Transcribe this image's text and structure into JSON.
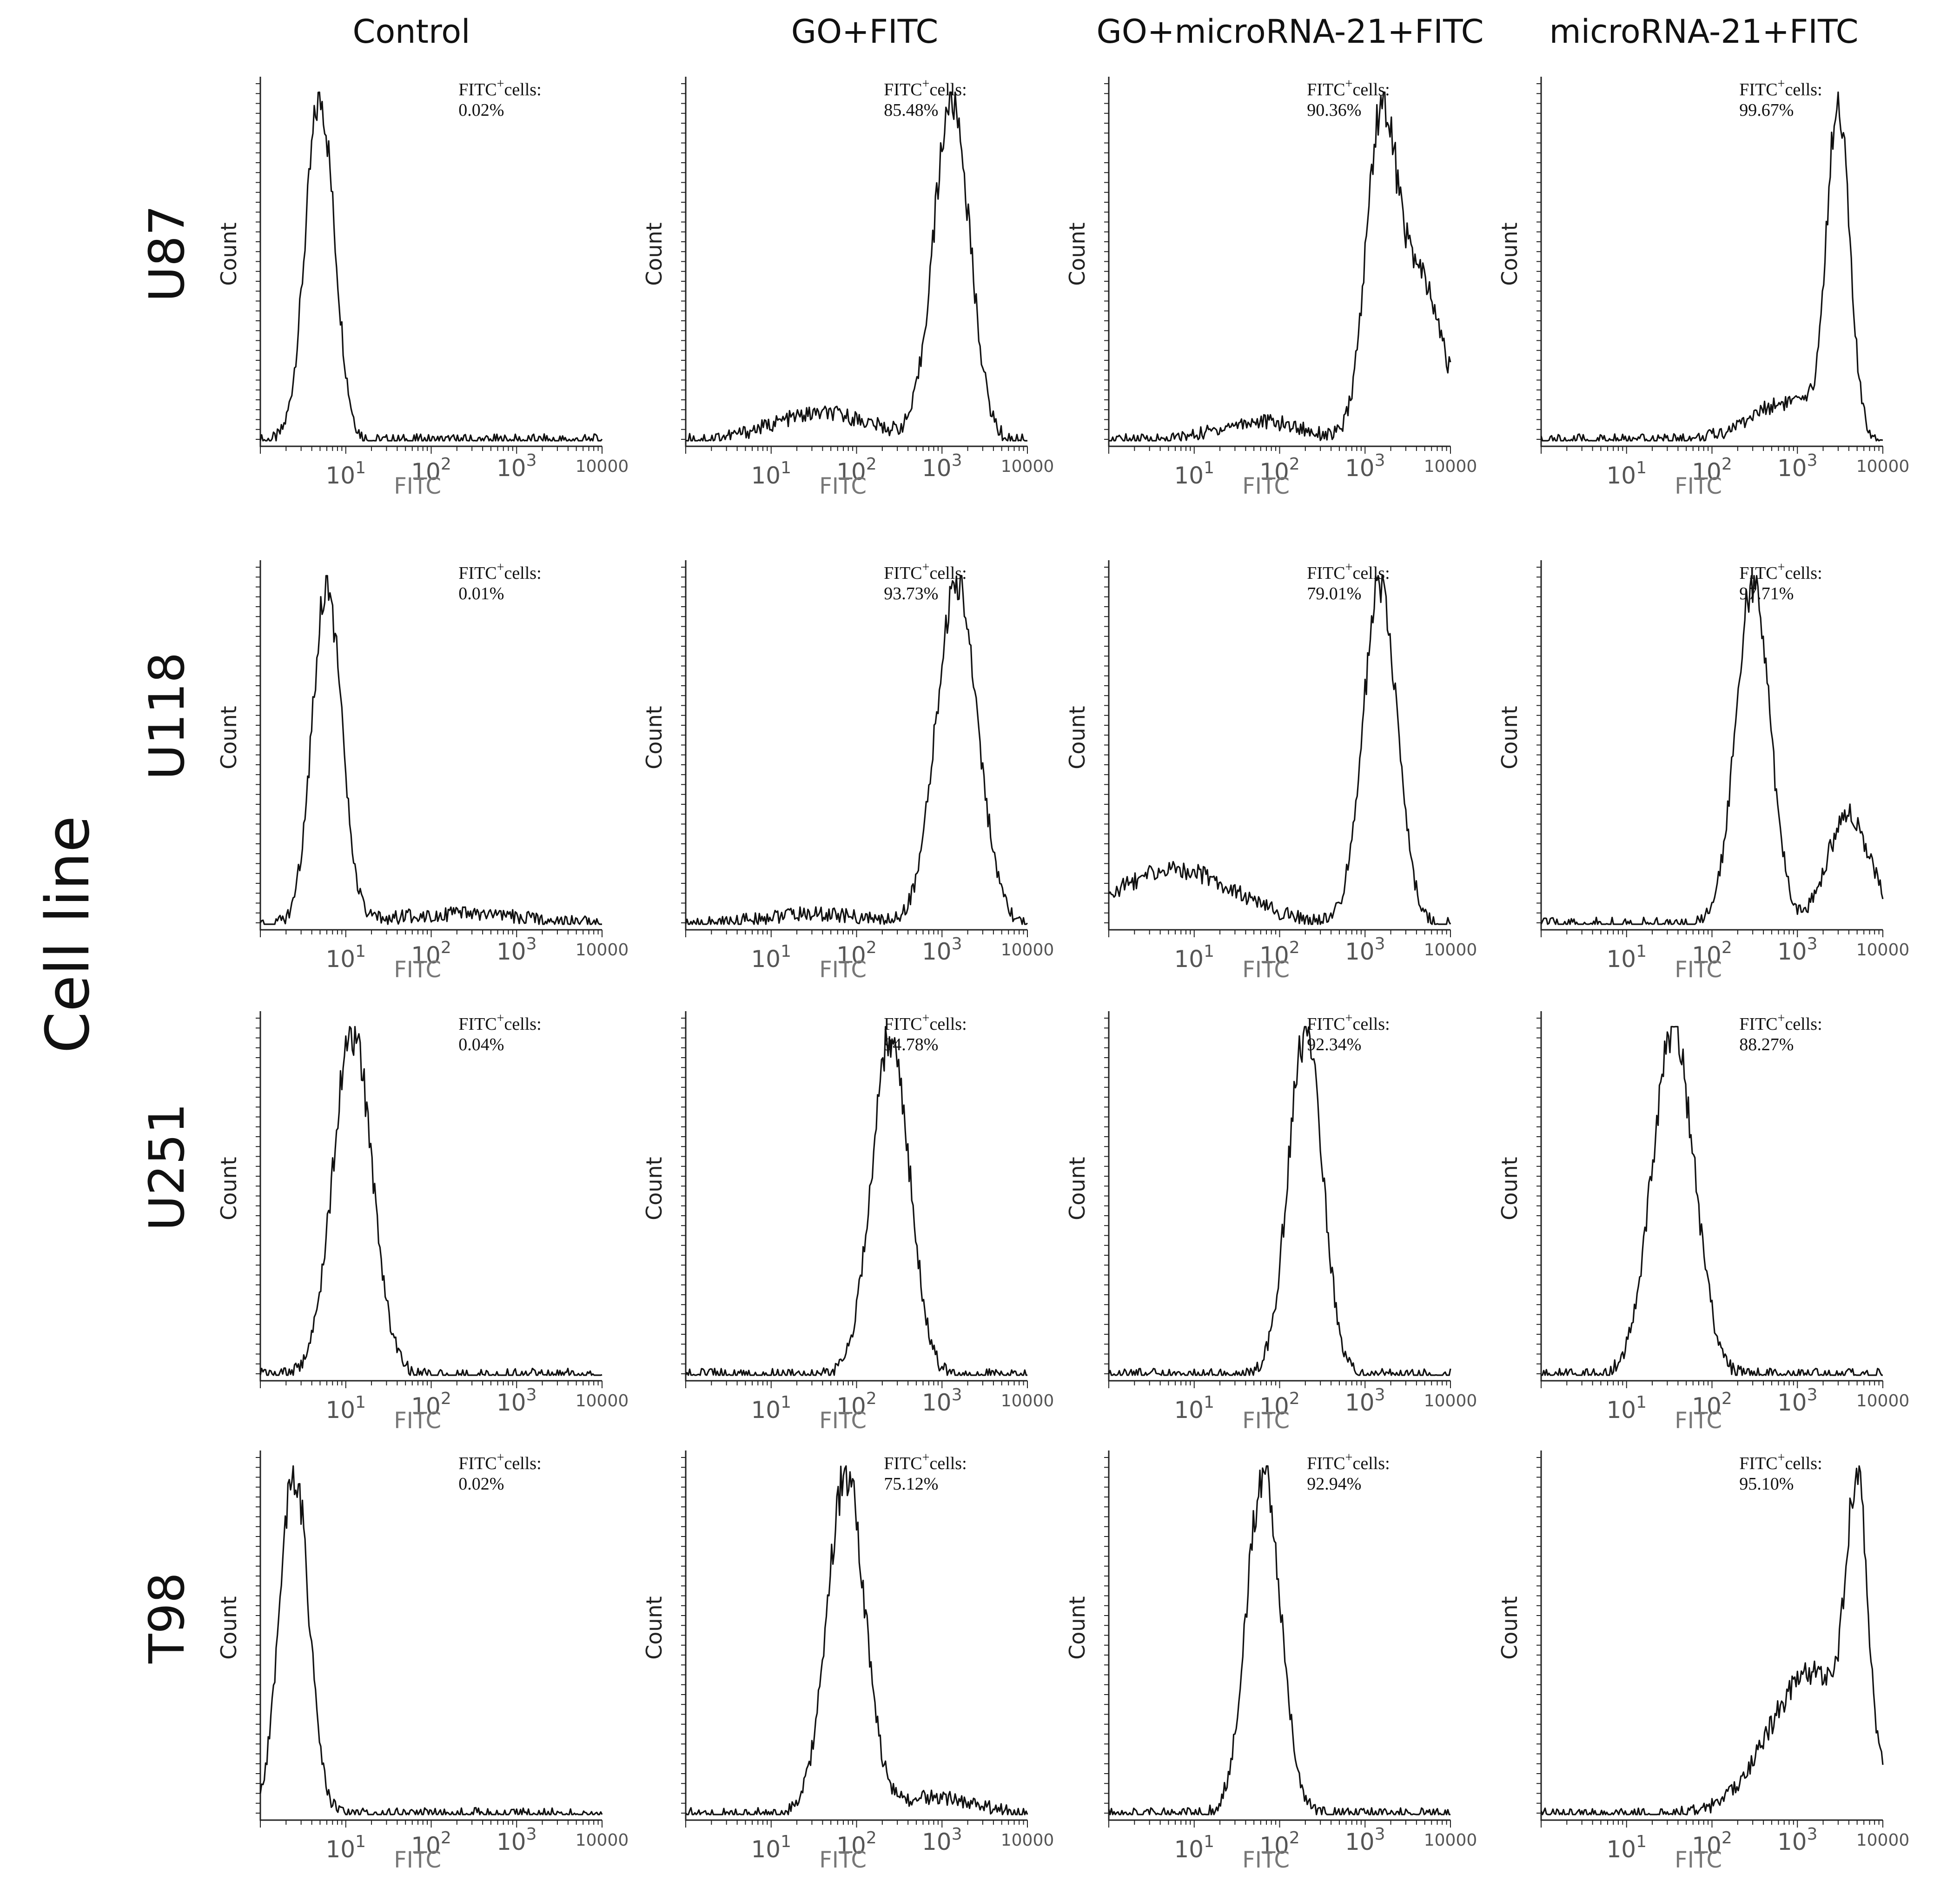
{
  "figure": {
    "row_axis_label": "Cell line",
    "columns": [
      "Control",
      "GO+FITC",
      "GO+microRNA-21+FITC",
      "microRNA-21+FITC"
    ],
    "rows": [
      "U87",
      "U118",
      "U251",
      "T98"
    ]
  },
  "chart_data": {
    "type": "histogram-grid",
    "xlabel": "FITC",
    "ylabel": "Count",
    "x_scale": "log",
    "x_range": [
      1,
      10000
    ],
    "x_tick_labels": [
      "10",
      "10",
      "10",
      "10000"
    ],
    "x_tick_exponents": [
      "1",
      "2",
      "3",
      ""
    ],
    "annotation_prefix": "FITC",
    "annotation_superscript": "+",
    "annotation_suffix": "cells:",
    "panels": [
      {
        "row": "U87",
        "column": "Control",
        "fitc_positive": "0.02%",
        "peak_fitc": 5,
        "components": [
          {
            "mu": 5,
            "s": 0.17,
            "w": 1
          }
        ]
      },
      {
        "row": "U87",
        "column": "GO+FITC",
        "fitc_positive": "85.48%",
        "peak_fitc": 1300,
        "components": [
          {
            "mu": 1300,
            "s": 0.21,
            "w": 1
          },
          {
            "mu": 40,
            "s": 0.6,
            "w": 0.08
          }
        ]
      },
      {
        "row": "U87",
        "column": "GO+microRNA-21+FITC",
        "fitc_positive": "90.36%",
        "peak_fitc": 1500,
        "components": [
          {
            "mu": 1500,
            "s": 0.17,
            "w": 1
          },
          {
            "mu": 4000,
            "s": 0.3,
            "w": 0.6
          },
          {
            "mu": 60,
            "s": 0.5,
            "w": 0.07
          }
        ]
      },
      {
        "row": "U87",
        "column": "microRNA-21+FITC",
        "fitc_positive": "99.67%",
        "peak_fitc": 3000,
        "components": [
          {
            "mu": 3000,
            "s": 0.13,
            "w": 1
          },
          {
            "mu": 800,
            "s": 0.45,
            "w": 0.12
          }
        ]
      },
      {
        "row": "U118",
        "column": "Control",
        "fitc_positive": "0.01%",
        "peak_fitc": 6,
        "components": [
          {
            "mu": 6,
            "s": 0.17,
            "w": 1
          },
          {
            "mu": 200,
            "s": 0.8,
            "w": 0.03
          }
        ]
      },
      {
        "row": "U118",
        "column": "GO+FITC",
        "fitc_positive": "93.73%",
        "peak_fitc": 1500,
        "components": [
          {
            "mu": 1500,
            "s": 0.24,
            "w": 1
          },
          {
            "mu": 30,
            "s": 0.6,
            "w": 0.03
          }
        ]
      },
      {
        "row": "U118",
        "column": "GO+microRNA-21+FITC",
        "fitc_positive": "79.01%",
        "peak_fitc": 1500,
        "components": [
          {
            "mu": 1500,
            "s": 0.2,
            "w": 1
          },
          {
            "mu": 6,
            "s": 0.7,
            "w": 0.16
          }
        ]
      },
      {
        "row": "U118",
        "column": "microRNA-21+FITC",
        "fitc_positive": "97.71%",
        "peak_fitc": 300,
        "components": [
          {
            "mu": 300,
            "s": 0.2,
            "w": 1
          },
          {
            "mu": 4000,
            "s": 0.25,
            "w": 0.32
          }
        ]
      },
      {
        "row": "U251",
        "column": "Control",
        "fitc_positive": "0.04%",
        "peak_fitc": 12,
        "components": [
          {
            "mu": 12,
            "s": 0.23,
            "w": 1
          }
        ]
      },
      {
        "row": "U251",
        "column": "GO+FITC",
        "fitc_positive": "94.78%",
        "peak_fitc": 250,
        "components": [
          {
            "mu": 250,
            "s": 0.22,
            "w": 1
          }
        ]
      },
      {
        "row": "U251",
        "column": "GO+microRNA-21+FITC",
        "fitc_positive": "92.34%",
        "peak_fitc": 200,
        "components": [
          {
            "mu": 200,
            "s": 0.2,
            "w": 1
          }
        ]
      },
      {
        "row": "U251",
        "column": "microRNA-21+FITC",
        "fitc_positive": "88.27%",
        "peak_fitc": 35,
        "components": [
          {
            "mu": 35,
            "s": 0.25,
            "w": 1
          }
        ]
      },
      {
        "row": "T98",
        "column": "Control",
        "fitc_positive": "0.02%",
        "peak_fitc": 2.5,
        "components": [
          {
            "mu": 2.5,
            "s": 0.17,
            "w": 1
          }
        ]
      },
      {
        "row": "T98",
        "column": "GO+FITC",
        "fitc_positive": "75.12%",
        "peak_fitc": 75,
        "components": [
          {
            "mu": 75,
            "s": 0.22,
            "w": 1
          },
          {
            "mu": 800,
            "s": 0.5,
            "w": 0.05
          }
        ]
      },
      {
        "row": "T98",
        "column": "GO+microRNA-21+FITC",
        "fitc_positive": "92.94%",
        "peak_fitc": 65,
        "components": [
          {
            "mu": 65,
            "s": 0.2,
            "w": 1
          }
        ]
      },
      {
        "row": "T98",
        "column": "microRNA-21+FITC",
        "fitc_positive": "95.10%",
        "peak_fitc": 5000,
        "components": [
          {
            "mu": 5000,
            "s": 0.12,
            "w": 1
          },
          {
            "mu": 1500,
            "s": 0.5,
            "w": 0.55
          }
        ]
      }
    ]
  }
}
